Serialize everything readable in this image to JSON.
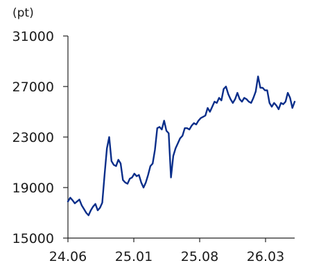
{
  "chart_data": {
    "type": "line",
    "unit_label": "(pt)",
    "x_ticks": [
      "24.06",
      "25.01",
      "25.08",
      "26.03"
    ],
    "y_ticks": [
      31000,
      27000,
      23000,
      19000,
      15000
    ],
    "ylim": [
      15000,
      31000
    ],
    "grid": false,
    "line_color": "#0a2e8a",
    "series": [
      {
        "values": [
          17900,
          18200,
          18000,
          17750,
          17900,
          18050,
          17600,
          17300,
          17000,
          16800,
          17200,
          17500,
          17700,
          17200,
          17400,
          17800,
          20000,
          22100,
          23000,
          21100,
          20800,
          20700,
          21200,
          20900,
          19600,
          19400,
          19300,
          19700,
          19800,
          20100,
          19900,
          20000,
          19400,
          19000,
          19400,
          20000,
          20700,
          20900,
          22000,
          23700,
          23800,
          23600,
          24300,
          23500,
          23300,
          19800,
          21500,
          22100,
          22500,
          22900,
          23100,
          23700,
          23700,
          23600,
          23900,
          24100,
          24000,
          24300,
          24500,
          24600,
          24700,
          25300,
          25000,
          25400,
          25800,
          25700,
          26100,
          25900,
          26800,
          27000,
          26400,
          26000,
          25700,
          26000,
          26500,
          26000,
          25800,
          26100,
          26000,
          25800,
          25700,
          26100,
          26600,
          27800,
          26900,
          26900,
          26700,
          26700,
          25700,
          25400,
          25700,
          25500,
          25200,
          25700,
          25600,
          25800,
          26500,
          26100,
          25300,
          25800
        ]
      }
    ]
  }
}
